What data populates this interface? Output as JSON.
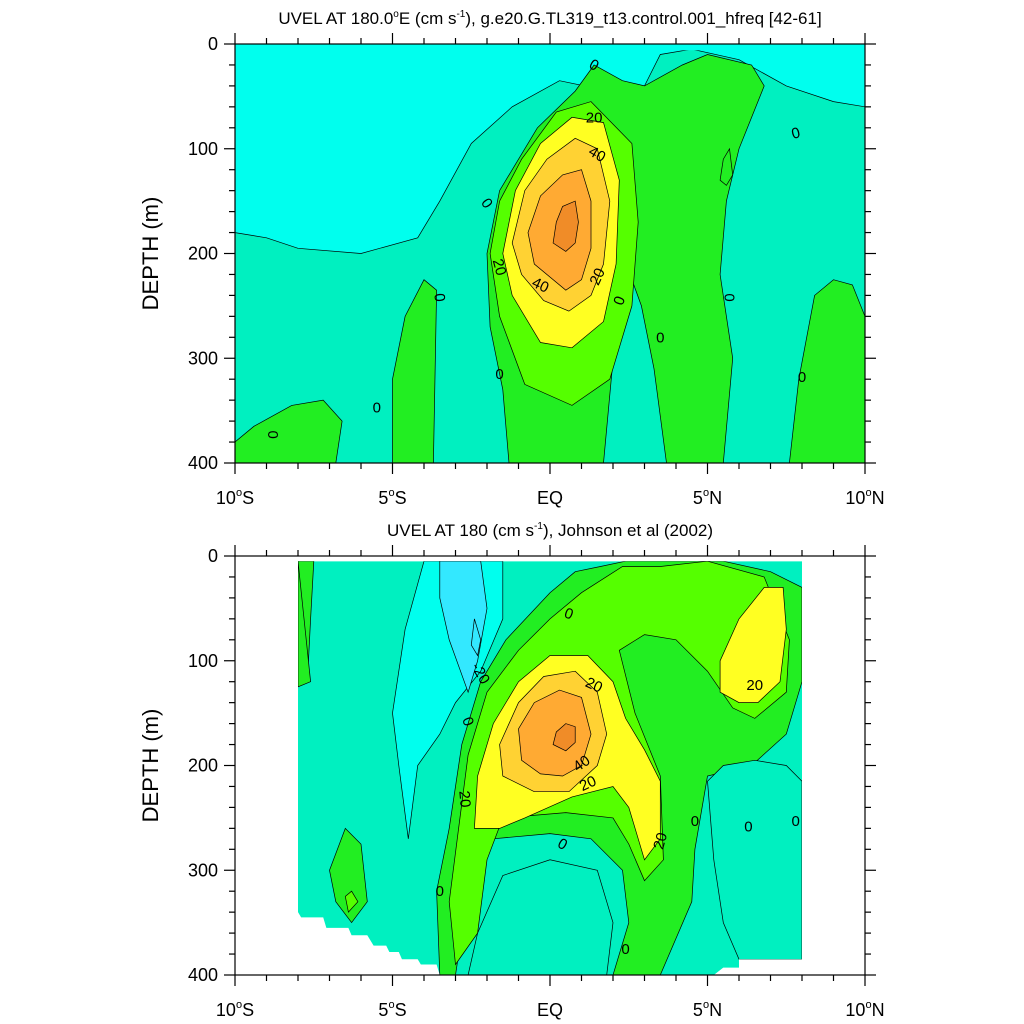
{
  "chart_data": [
    {
      "type": "contour",
      "title_main": "UVEL AT 180.0",
      "title_deg": "o",
      "title_mid": "E (cm s",
      "title_exp": "-1",
      "title_tail": "), g.e20.G.TL319_t13.control.001_hfreq [42-61]",
      "ylabel": "DEPTH (m)",
      "xlabel": "",
      "xlim": [
        -10,
        10
      ],
      "ylim": [
        0,
        400
      ],
      "y_inverted": true,
      "x_ticks": [
        {
          "v": -10,
          "label": "10",
          "sup": "o",
          "suf": "S"
        },
        {
          "v": -5,
          "label": "5",
          "sup": "o",
          "suf": "S"
        },
        {
          "v": 0,
          "label": "EQ",
          "sup": "",
          "suf": ""
        },
        {
          "v": 5,
          "label": "5",
          "sup": "o",
          "suf": "N"
        },
        {
          "v": 10,
          "label": "10",
          "sup": "o",
          "suf": "N"
        }
      ],
      "y_ticks": [
        {
          "v": 0,
          "label": "0"
        },
        {
          "v": 100,
          "label": "100"
        },
        {
          "v": 200,
          "label": "200"
        },
        {
          "v": 300,
          "label": "300"
        },
        {
          "v": 400,
          "label": "400"
        }
      ],
      "contour_interval": 10,
      "data_extent": {
        "x": [
          -10,
          10
        ],
        "y": [
          5,
          400
        ]
      },
      "core": {
        "lat": 0.6,
        "depth": 170,
        "max_speed": 60
      },
      "contour_labels": [
        {
          "lat": 1.4,
          "depth": 20,
          "text": "0",
          "angle": 30
        },
        {
          "lat": 7.8,
          "depth": 85,
          "text": "0",
          "angle": -15
        },
        {
          "lat": -2.0,
          "depth": 152,
          "text": "0",
          "angle": 55
        },
        {
          "lat": 1.4,
          "depth": 70,
          "text": "20",
          "angle": 0
        },
        {
          "lat": 1.5,
          "depth": 105,
          "text": "40",
          "angle": 30
        },
        {
          "lat": -1.6,
          "depth": 213,
          "text": "20",
          "angle": 75
        },
        {
          "lat": -0.3,
          "depth": 230,
          "text": "40",
          "angle": 25
        },
        {
          "lat": 1.5,
          "depth": 222,
          "text": "20",
          "angle": -65
        },
        {
          "lat": -3.5,
          "depth": 242,
          "text": "0",
          "angle": 85
        },
        {
          "lat": 2.2,
          "depth": 245,
          "text": "0",
          "angle": -70
        },
        {
          "lat": 5.7,
          "depth": 242,
          "text": "0",
          "angle": 90
        },
        {
          "lat": 3.5,
          "depth": 280,
          "text": "0",
          "angle": 0
        },
        {
          "lat": -1.6,
          "depth": 315,
          "text": "0",
          "angle": 0
        },
        {
          "lat": 8.0,
          "depth": 318,
          "text": "0",
          "angle": 0
        },
        {
          "lat": -5.5,
          "depth": 347,
          "text": "0",
          "angle": 0
        },
        {
          "lat": -8.8,
          "depth": 373,
          "text": "0",
          "angle": 90
        }
      ]
    },
    {
      "type": "contour",
      "title_main": "UVEL AT 180 (cm s",
      "title_exp": "-1",
      "title_tail": "), Johnson et al (2002)",
      "ylabel": "DEPTH (m)",
      "xlabel": "",
      "xlim": [
        -10,
        10
      ],
      "ylim": [
        0,
        400
      ],
      "y_inverted": true,
      "x_ticks": [
        {
          "v": -10,
          "label": "10",
          "sup": "o",
          "suf": "S"
        },
        {
          "v": -5,
          "label": "5",
          "sup": "o",
          "suf": "S"
        },
        {
          "v": 0,
          "label": "EQ",
          "sup": "",
          "suf": ""
        },
        {
          "v": 5,
          "label": "5",
          "sup": "o",
          "suf": "N"
        },
        {
          "v": 10,
          "label": "10",
          "sup": "o",
          "suf": "N"
        }
      ],
      "y_ticks": [
        {
          "v": 0,
          "label": "0"
        },
        {
          "v": 100,
          "label": "100"
        },
        {
          "v": 200,
          "label": "200"
        },
        {
          "v": 300,
          "label": "300"
        },
        {
          "v": 400,
          "label": "400"
        }
      ],
      "contour_interval": 10,
      "data_extent": {
        "x": [
          -8,
          8
        ],
        "y": [
          5,
          400
        ]
      },
      "core": {
        "lat": 0.6,
        "depth": 170,
        "max_speed": 60
      },
      "contour_labels": [
        {
          "lat": 0.6,
          "depth": 55,
          "text": "0",
          "angle": 20
        },
        {
          "lat": -2.2,
          "depth": 112,
          "text": "-20",
          "angle": 60
        },
        {
          "lat": 1.4,
          "depth": 123,
          "text": "20",
          "angle": 25
        },
        {
          "lat": 6.5,
          "depth": 123,
          "text": "20",
          "angle": 0
        },
        {
          "lat": -2.6,
          "depth": 158,
          "text": "0",
          "angle": 70
        },
        {
          "lat": 1.0,
          "depth": 198,
          "text": "40",
          "angle": -35
        },
        {
          "lat": 1.2,
          "depth": 217,
          "text": "20",
          "angle": -25
        },
        {
          "lat": -2.7,
          "depth": 232,
          "text": "20",
          "angle": 85
        },
        {
          "lat": 4.6,
          "depth": 253,
          "text": "0",
          "angle": 0
        },
        {
          "lat": 6.3,
          "depth": 258,
          "text": "0",
          "angle": 0
        },
        {
          "lat": 7.8,
          "depth": 253,
          "text": "0",
          "angle": 0
        },
        {
          "lat": 3.5,
          "depth": 272,
          "text": "20",
          "angle": -75
        },
        {
          "lat": 0.4,
          "depth": 275,
          "text": "0",
          "angle": 30
        },
        {
          "lat": -3.5,
          "depth": 320,
          "text": "0",
          "angle": 0
        },
        {
          "lat": 2.4,
          "depth": 375,
          "text": "0",
          "angle": 0
        }
      ]
    }
  ],
  "colors": {
    "m30": "#33e8ff",
    "m20": "#33e8ff",
    "m10": "#00ffee",
    "p0": "#00f0c0",
    "p10": "#22ee22",
    "p20": "#55ff00",
    "p30": "#ffff22",
    "p40": "#ffd233",
    "p50": "#ffaa33",
    "p60": "#f08c28"
  }
}
